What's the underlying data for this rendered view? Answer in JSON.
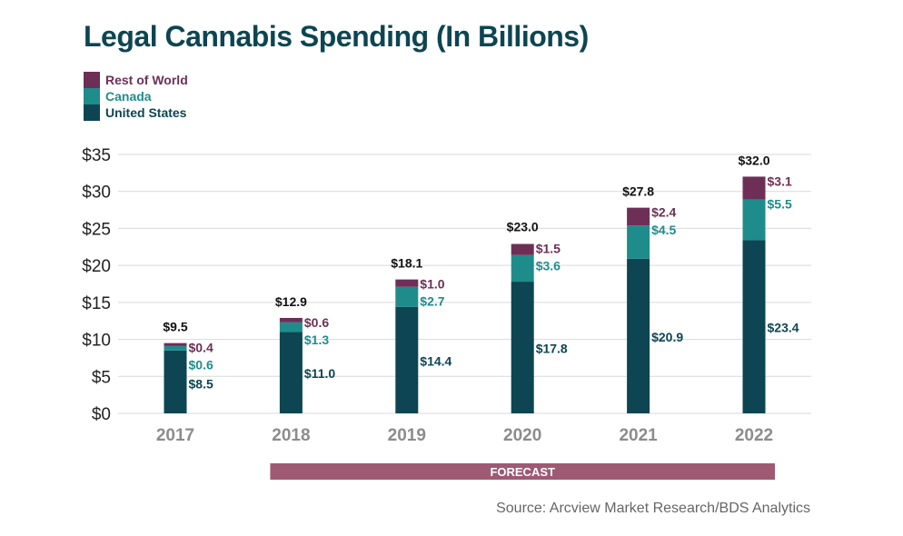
{
  "title": "Legal Cannabis Spending (In Billions)",
  "source": "Source: Arcview Market Research/BDS Analytics",
  "forecast_label": "FORECAST",
  "colors": {
    "united_states": "#0d4552",
    "canada": "#1f8c8c",
    "rest_of_world": "#6e2f57",
    "forecast_bar": "#9e5a72",
    "axis_text": "#222222",
    "year_text": "#8c8c8c",
    "grid": "#d9d9d9",
    "total_text": "#111111"
  },
  "legend": [
    {
      "label": "Rest of World",
      "color": "#6e2f57"
    },
    {
      "label": "Canada",
      "color": "#1f8c8c"
    },
    {
      "label": "United States",
      "color": "#0d4552"
    }
  ],
  "chart_data": {
    "type": "bar",
    "stacked": true,
    "title": "Legal Cannabis Spending (In Billions)",
    "categories": [
      "2017",
      "2018",
      "2019",
      "2020",
      "2021",
      "2022"
    ],
    "series": [
      {
        "name": "United States",
        "values": [
          8.5,
          11.0,
          14.4,
          17.8,
          20.9,
          23.4
        ],
        "labels": [
          "$8.5",
          "$11.0",
          "$14.4",
          "$17.8",
          "$20.9",
          "$23.4"
        ]
      },
      {
        "name": "Canada",
        "values": [
          0.6,
          1.3,
          2.7,
          3.6,
          4.5,
          5.5
        ],
        "labels": [
          "$0.6",
          "$1.3",
          "$2.7",
          "$3.6",
          "$4.5",
          "$5.5"
        ]
      },
      {
        "name": "Rest of World",
        "values": [
          0.4,
          0.6,
          1.0,
          1.5,
          2.4,
          3.1
        ],
        "labels": [
          "$0.4",
          "$0.6",
          "$1.0",
          "$1.5",
          "$2.4",
          "$3.1"
        ]
      }
    ],
    "totals": [
      9.5,
      12.9,
      18.1,
      23.0,
      27.8,
      32.0
    ],
    "total_labels": [
      "$9.5",
      "$12.9",
      "$18.1",
      "$23.0",
      "$27.8",
      "$32.0"
    ],
    "yticks": [
      0,
      5,
      10,
      15,
      20,
      25,
      30,
      35
    ],
    "ytick_labels": [
      "$0",
      "$5",
      "$10",
      "$15",
      "$20",
      "$25",
      "$30",
      "$35"
    ],
    "ylim": [
      0,
      35
    ],
    "grid": true,
    "legend_position": "top-left",
    "forecast_range": [
      "2018",
      "2022"
    ]
  }
}
